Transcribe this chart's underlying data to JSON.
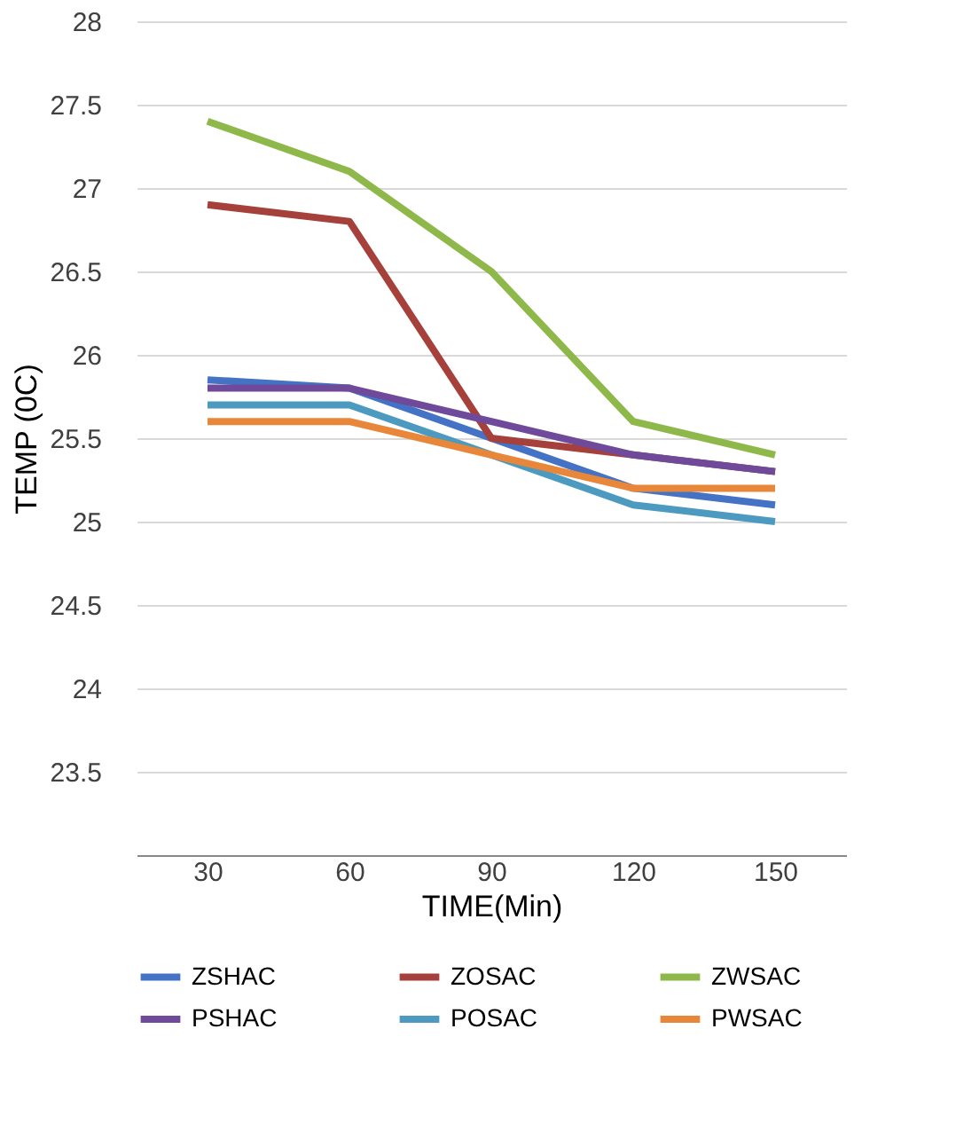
{
  "chart_data": {
    "type": "line",
    "xlabel": "TIME(Min)",
    "ylabel": "TEMP (0C)",
    "categories": [
      "30",
      "60",
      "90",
      "120",
      "150"
    ],
    "ylim": [
      23,
      28
    ],
    "yticks": [
      23.5,
      24,
      24.5,
      25,
      25.5,
      26,
      26.5,
      27,
      27.5,
      28
    ],
    "grid": "y",
    "legend": "bottom",
    "marker": "none",
    "line_style": "solid",
    "series": [
      {
        "name": "ZSHAC",
        "color": "#4472c4",
        "values": [
          25.85,
          25.8,
          25.5,
          25.2,
          25.1
        ]
      },
      {
        "name": "ZOSAC",
        "color": "#a5403a",
        "values": [
          26.9,
          26.8,
          25.5,
          25.4,
          25.3
        ]
      },
      {
        "name": "ZWSAC",
        "color": "#8fb84a",
        "values": [
          27.4,
          27.1,
          26.5,
          25.6,
          25.4
        ]
      },
      {
        "name": "PSHAC",
        "color": "#6f4a9a",
        "values": [
          25.8,
          25.8,
          25.6,
          25.4,
          25.3
        ]
      },
      {
        "name": "POSAC",
        "color": "#4c9ac0",
        "values": [
          25.7,
          25.7,
          25.4,
          25.1,
          25.0
        ]
      },
      {
        "name": "PWSAC",
        "color": "#e8873a",
        "values": [
          25.6,
          25.6,
          25.4,
          25.2,
          25.2
        ]
      }
    ]
  }
}
